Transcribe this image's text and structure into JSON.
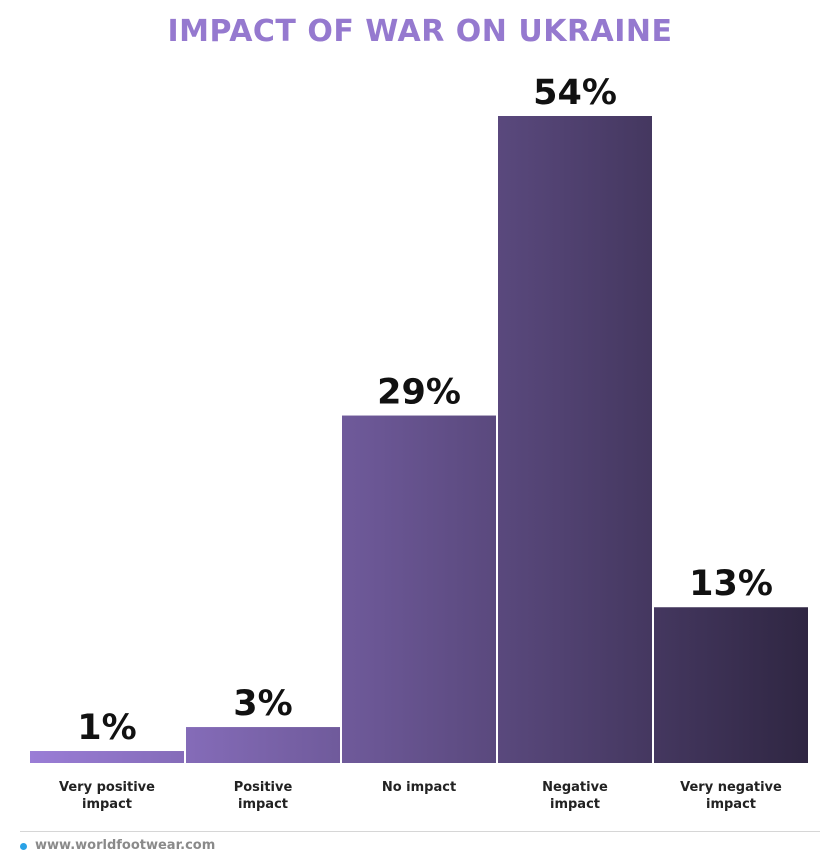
{
  "chart_data": {
    "type": "bar",
    "title": "IMPACT OF WAR ON UKRAINE",
    "categories": [
      [
        "Very positive",
        "impact"
      ],
      [
        "Positive",
        "impact"
      ],
      [
        "No impact"
      ],
      [
        "Negative",
        "impact"
      ],
      [
        "Very negative",
        "impact"
      ]
    ],
    "values": [
      1,
      3,
      29,
      54,
      13
    ],
    "value_labels": [
      "1%",
      "3%",
      "29%",
      "54%",
      "13%"
    ],
    "unit": "%",
    "ylim": [
      0,
      54
    ],
    "grid": false,
    "legend": "none",
    "colors": {
      "title": "#9579cf",
      "bar_light": "#9a7dd6",
      "bar_dark": "#2f2642"
    }
  },
  "footer": {
    "source": "www.worldfootwear.com",
    "dot_color": "#2aa2e6"
  }
}
